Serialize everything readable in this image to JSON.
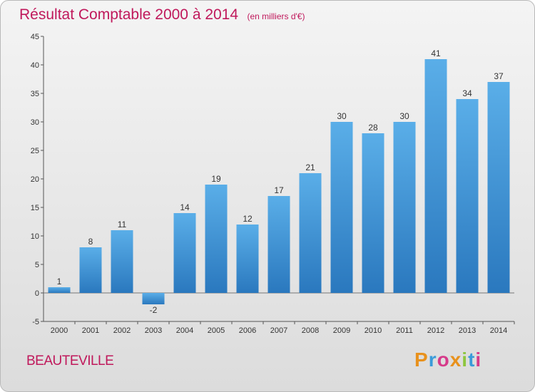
{
  "header": {
    "title": "Résultat Comptable 2000 à 2014",
    "unit": "(en milliers d'€)"
  },
  "footer": {
    "commune": "BEAUTEVILLE",
    "brand_letters": [
      "P",
      "r",
      "o",
      "x",
      "i",
      "t",
      "i"
    ],
    "brand_colors": [
      "#e8911c",
      "#3a9bd9",
      "#d63a8a",
      "#e8911c",
      "#8dc63f",
      "#3a9bd9",
      "#d63a8a"
    ]
  },
  "chart_data": {
    "type": "bar",
    "categories": [
      "2000",
      "2001",
      "2002",
      "2003",
      "2004",
      "2005",
      "2006",
      "2007",
      "2008",
      "2009",
      "2010",
      "2011",
      "2012",
      "2013",
      "2014"
    ],
    "values": [
      1,
      8,
      11,
      -2,
      14,
      19,
      12,
      17,
      21,
      30,
      28,
      30,
      41,
      34,
      37
    ],
    "yticks": [
      -5,
      0,
      5,
      10,
      15,
      20,
      25,
      30,
      35,
      40,
      45
    ],
    "ylim": [
      -5,
      45
    ],
    "title": "Résultat Comptable 2000 à 2014",
    "xlabel": "",
    "ylabel": "",
    "grid": false,
    "bar_color_top": "#5aaee8",
    "bar_color_bottom": "#2a78be"
  }
}
